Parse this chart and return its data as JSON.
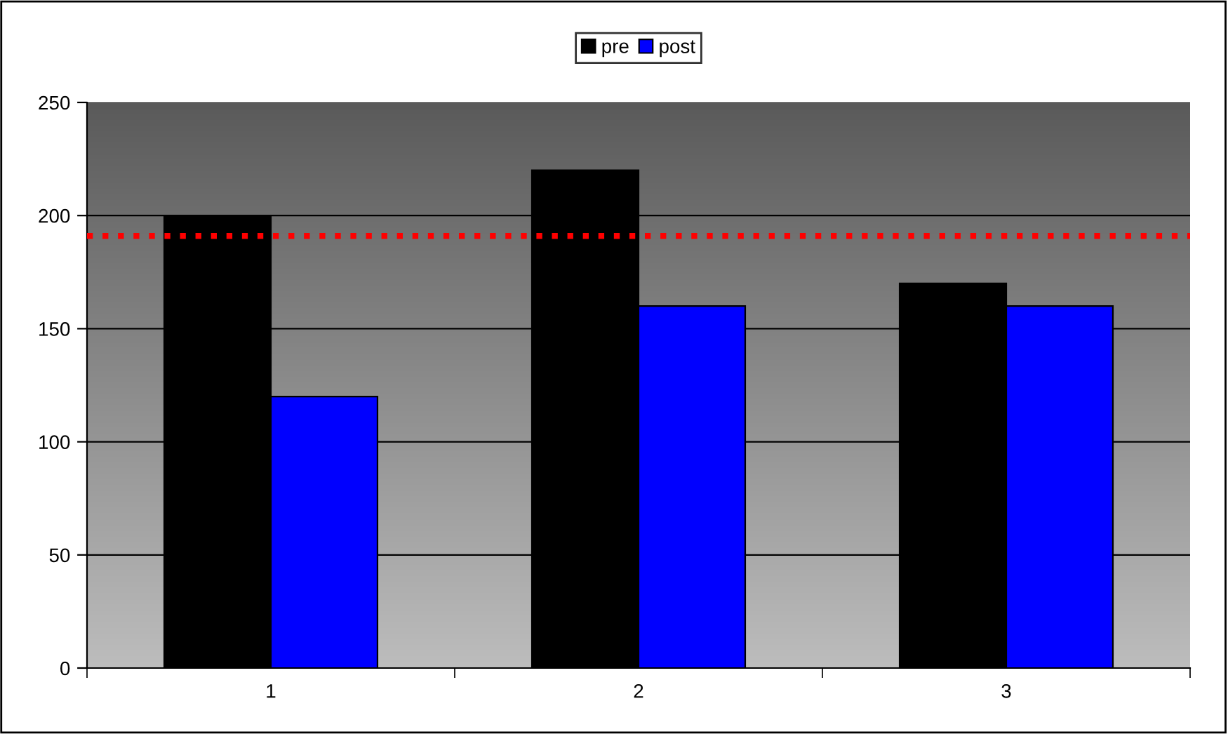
{
  "chart_data": {
    "type": "bar",
    "categories": [
      "1",
      "2",
      "3"
    ],
    "series": [
      {
        "name": "pre",
        "color": "#000000",
        "values": [
          200,
          220,
          170
        ]
      },
      {
        "name": "post",
        "color": "#0000ff",
        "values": [
          120,
          160,
          160
        ]
      }
    ],
    "ylim": [
      0,
      250
    ],
    "yticks": [
      0,
      50,
      100,
      150,
      200,
      250
    ],
    "grid": "y",
    "legend": "top",
    "ref_lines": [
      {
        "axis": "y",
        "value": 191,
        "color": "#ff0000",
        "line_style": "dotted"
      }
    ]
  }
}
